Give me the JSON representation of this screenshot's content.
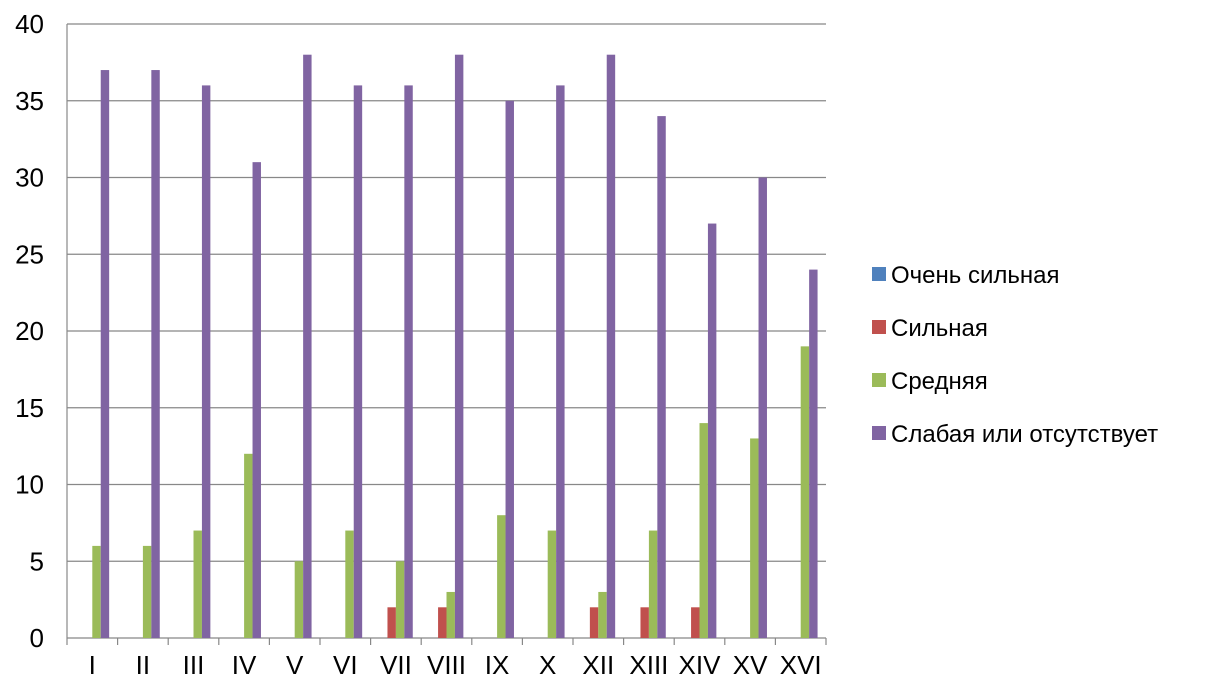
{
  "chart_data": {
    "type": "bar",
    "categories": [
      "I",
      "II",
      "III",
      "IV",
      "V",
      "VI",
      "VII",
      "VIII",
      "IX",
      "X",
      "XII",
      "XIII",
      "XIV",
      "XV",
      "XVI"
    ],
    "series": [
      {
        "name": "Очень сильная",
        "color": "#4F81BD",
        "values": [
          0,
          0,
          0,
          0,
          0,
          0,
          0,
          0,
          0,
          0,
          0,
          0,
          0,
          0,
          0
        ]
      },
      {
        "name": "Сильная",
        "color": "#C0504D",
        "values": [
          0,
          0,
          0,
          0,
          0,
          0,
          2,
          2,
          0,
          0,
          2,
          2,
          2,
          0,
          0
        ]
      },
      {
        "name": "Средняя",
        "color": "#9BBB59",
        "values": [
          6,
          6,
          7,
          12,
          5,
          7,
          5,
          3,
          8,
          7,
          3,
          7,
          14,
          13,
          19
        ]
      },
      {
        "name": "Слабая или отсутствует",
        "color": "#8064A2",
        "values": [
          37,
          37,
          36,
          31,
          38,
          36,
          36,
          38,
          35,
          36,
          38,
          34,
          27,
          30,
          24
        ]
      }
    ],
    "yticks": [
      0,
      5,
      10,
      15,
      20,
      25,
      30,
      35,
      40
    ],
    "ylim": [
      0,
      40
    ],
    "title": "",
    "xlabel": "",
    "ylabel": "",
    "grid": true,
    "legend_position": "right"
  }
}
